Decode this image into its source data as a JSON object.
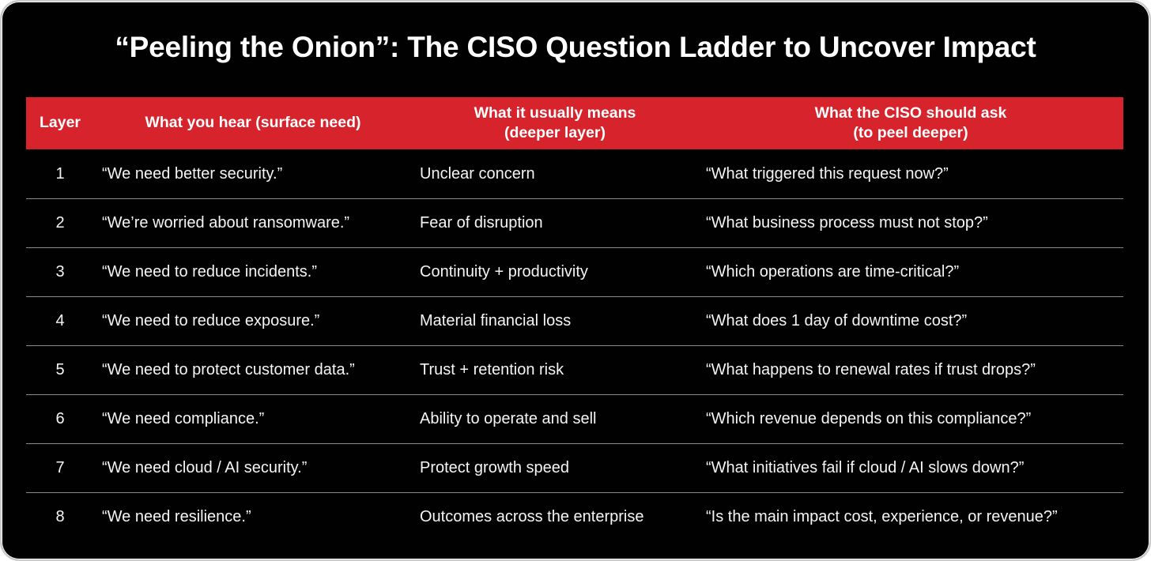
{
  "title": "“Peeling the Onion”: The CISO Question Ladder to Uncover Impact",
  "colors": {
    "header_bg": "#d7242c",
    "card_bg": "#010101",
    "divider": "#8a8a8a",
    "text": "#ffffff"
  },
  "table": {
    "columns": [
      {
        "label": "Layer"
      },
      {
        "label": "What you hear (surface need)"
      },
      {
        "label": "What it usually means\n(deeper layer)"
      },
      {
        "label": "What the CISO should ask\n(to peel deeper)"
      }
    ],
    "rows": [
      {
        "layer": "1",
        "hear": "“We need better security.”",
        "means": "Unclear concern",
        "ask": "“What triggered this request now?”"
      },
      {
        "layer": "2",
        "hear": "“We’re worried about ransomware.”",
        "means": "Fear of disruption",
        "ask": "“What business process must not stop?”"
      },
      {
        "layer": "3",
        "hear": "“We need to reduce incidents.”",
        "means": "Continuity + productivity",
        "ask": "“Which operations are time-critical?”"
      },
      {
        "layer": "4",
        "hear": "“We need to reduce exposure.”",
        "means": "Material financial loss",
        "ask": "“What does 1 day of downtime cost?”"
      },
      {
        "layer": "5",
        "hear": "“We need to protect customer data.”",
        "means": "Trust + retention risk",
        "ask": "“What happens to renewal rates if trust drops?”"
      },
      {
        "layer": "6",
        "hear": "“We need compliance.”",
        "means": "Ability to operate and sell",
        "ask": "“Which revenue depends on this compliance?”"
      },
      {
        "layer": "7",
        "hear": "“We need cloud / AI security.”",
        "means": "Protect growth speed",
        "ask": "“What initiatives fail if cloud / AI slows down?”"
      },
      {
        "layer": "8",
        "hear": "“We need resilience.”",
        "means": "Outcomes across the enterprise",
        "ask": "“Is the main impact cost, experience, or revenue?”"
      }
    ]
  },
  "chart_data": {
    "type": "table",
    "title": "“Peeling the Onion”: The CISO Question Ladder to Uncover Impact",
    "columns": [
      "Layer",
      "What you hear (surface need)",
      "What it usually means (deeper layer)",
      "What the CISO should ask (to peel deeper)"
    ],
    "rows": [
      [
        "1",
        "“We need better security.”",
        "Unclear concern",
        "“What triggered this request now?”"
      ],
      [
        "2",
        "“We’re worried about ransomware.”",
        "Fear of disruption",
        "“What business process must not stop?”"
      ],
      [
        "3",
        "“We need to reduce incidents.”",
        "Continuity + productivity",
        "“Which operations are time-critical?”"
      ],
      [
        "4",
        "“We need to reduce exposure.”",
        "Material financial loss",
        "“What does 1 day of downtime cost?”"
      ],
      [
        "5",
        "“We need to protect customer data.”",
        "Trust + retention risk",
        "“What happens to renewal rates if trust drops?”"
      ],
      [
        "6",
        "“We need compliance.”",
        "Ability to operate and sell",
        "“Which revenue depends on this compliance?”"
      ],
      [
        "7",
        "“We need cloud / AI security.”",
        "Protect growth speed",
        "“What initiatives fail if cloud / AI slows down?”"
      ],
      [
        "8",
        "“We need resilience.”",
        "Outcomes across the enterprise",
        "“Is the main impact cost, experience, or revenue?”"
      ]
    ],
    "layout": {
      "header_bg": "#d7242c",
      "body_bg": "#010101",
      "row_dividers": true,
      "legend": "none"
    }
  }
}
